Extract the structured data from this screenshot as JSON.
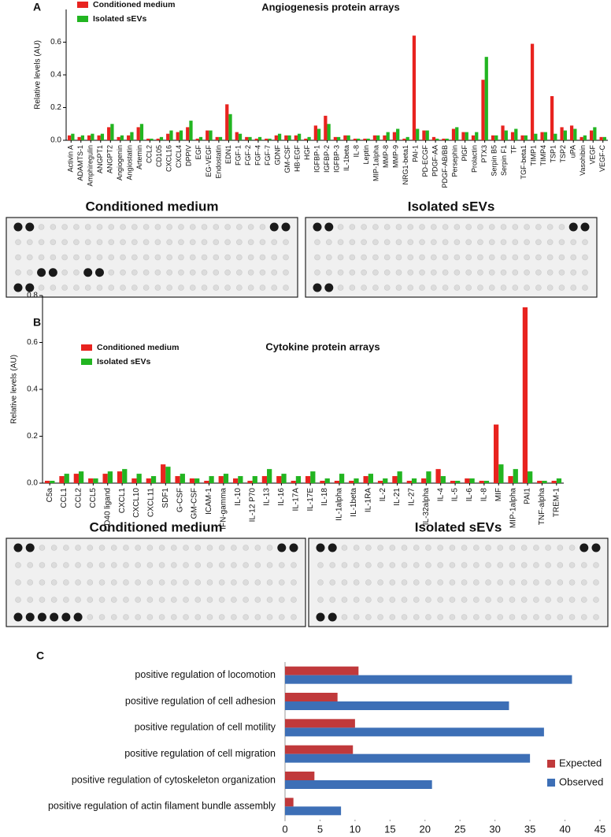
{
  "chart_data": [
    {
      "type": "bar",
      "panel_label": "A",
      "title": "Angiogenesis protein arrays",
      "y_label": "Relative levels (AU)",
      "categories": [
        "Activin A",
        "ADAMTS-1",
        "Amphiregulin",
        "ANGPT1",
        "ANGPT2",
        "Angiogenin",
        "Angiostatin",
        "Artemin",
        "CCL2",
        "CD105",
        "CXCL16",
        "CXCL4",
        "DPPIV",
        "EGF",
        "EG-VEGF",
        "Endostatin",
        "EDN1",
        "FGF-1",
        "FGF-2",
        "FGF-4",
        "FGF-7",
        "GDNF",
        "GM-CSF",
        "HB-EGF",
        "HGF",
        "IGFBP-1",
        "IGFBP-2",
        "IGFBP-3",
        "IL-1beta",
        "IL-8",
        "Leptin",
        "MIP-1alpha",
        "MMP-8",
        "MMP-9",
        "NRG1-beta1",
        "PAI-1",
        "PD-ECGF",
        "PDGF-AA",
        "PDGF-AB/BB",
        "Persephin",
        "PlGF",
        "Prolactin",
        "PTX3",
        "Serpin B5",
        "Serpin F1",
        "TF",
        "TGF-beta1",
        "TIMP1",
        "TIMP4",
        "TSP1",
        "TSP2",
        "uPA",
        "Vasohibin",
        "VEGF",
        "VEGF-C"
      ],
      "series": [
        {
          "name": "Conditioned medium",
          "color": "#e8231f",
          "values": [
            0.03,
            0.02,
            0.03,
            0.03,
            0.08,
            0.02,
            0.03,
            0.08,
            0.01,
            0.01,
            0.04,
            0.05,
            0.08,
            0.01,
            0.06,
            0.02,
            0.22,
            0.05,
            0.02,
            0.01,
            0.01,
            0.03,
            0.03,
            0.03,
            0.01,
            0.09,
            0.15,
            0.02,
            0.03,
            0.01,
            0.01,
            0.03,
            0.03,
            0.05,
            0.01,
            0.64,
            0.06,
            0.02,
            0.01,
            0.07,
            0.05,
            0.03,
            0.37,
            0.03,
            0.09,
            0.05,
            0.03,
            0.59,
            0.05,
            0.27,
            0.08,
            0.09,
            0.02,
            0.06,
            0.02
          ]
        },
        {
          "name": "Isolated sEVs",
          "color": "#22b521",
          "values": [
            0.04,
            0.03,
            0.04,
            0.04,
            0.1,
            0.03,
            0.05,
            0.1,
            0.01,
            0.02,
            0.06,
            0.06,
            0.12,
            0.02,
            0.06,
            0.02,
            0.16,
            0.04,
            0.02,
            0.02,
            0.01,
            0.04,
            0.03,
            0.04,
            0.02,
            0.07,
            0.1,
            0.02,
            0.03,
            0.01,
            0.01,
            0.03,
            0.05,
            0.07,
            0.02,
            0.07,
            0.06,
            0.01,
            0.01,
            0.08,
            0.05,
            0.05,
            0.51,
            0.03,
            0.06,
            0.07,
            0.03,
            0.04,
            0.05,
            0.04,
            0.06,
            0.07,
            0.03,
            0.08,
            0.02
          ]
        }
      ],
      "ylim": [
        0,
        0.8
      ],
      "yticks": [
        {
          "value": 0,
          "label": "0.0"
        },
        0.2,
        0.4,
        0.6
      ],
      "array_titles": [
        "Conditioned medium",
        "Isolated sEVs"
      ]
    },
    {
      "type": "bar",
      "panel_label": "B",
      "title": "Cytokine protein arrays",
      "y_label": "Relative levels (AU)",
      "categories": [
        "C5a",
        "CCL1",
        "CCL2",
        "CCL5",
        "CD40 ligand",
        "CXCL1",
        "CXCL10",
        "CXCL11",
        "SDF1",
        "G-CSF",
        "GM-CSF",
        "ICAM-1",
        "IFN-gamma",
        "IL-10",
        "IL-12 P70",
        "IL-13",
        "IL-16",
        "IL-17A",
        "IL-17E",
        "IL-18",
        "IL-1alpha",
        "IL-1beta",
        "IL-1RA",
        "IL-2",
        "IL-21",
        "IL-27",
        "IL-32alpha",
        "IL-4",
        "IL-5",
        "IL-6",
        "IL-8",
        "MIF",
        "MIP-1alpha",
        "PAI1",
        "TNF-alpha",
        "TREM-1"
      ],
      "series": [
        {
          "name": "Conditioned medium",
          "color": "#e8231f",
          "values": [
            0.01,
            0.03,
            0.04,
            0.02,
            0.04,
            0.05,
            0.02,
            0.02,
            0.08,
            0.03,
            0.02,
            0.01,
            0.03,
            0.02,
            0.01,
            0.03,
            0.03,
            0.01,
            0.03,
            0.01,
            0.01,
            0.01,
            0.03,
            0.01,
            0.03,
            0.01,
            0.02,
            0.06,
            0.01,
            0.02,
            0.01,
            0.25,
            0.03,
            0.75,
            0.01,
            0.01
          ]
        },
        {
          "name": "Isolated sEVs",
          "color": "#22b521",
          "values": [
            0.01,
            0.04,
            0.05,
            0.02,
            0.05,
            0.06,
            0.04,
            0.03,
            0.07,
            0.04,
            0.02,
            0.03,
            0.04,
            0.03,
            0.03,
            0.06,
            0.04,
            0.03,
            0.05,
            0.02,
            0.04,
            0.02,
            0.04,
            0.02,
            0.05,
            0.02,
            0.05,
            0.03,
            0.01,
            0.02,
            0.01,
            0.08,
            0.06,
            0.05,
            0.01,
            0.02
          ]
        }
      ],
      "ylim": [
        0,
        0.8
      ],
      "yticks": [
        {
          "value": 0,
          "label": "0.0"
        },
        0.2,
        0.4,
        0.6,
        0.8
      ],
      "array_titles": [
        "Conditioned medium",
        "Isolated sEVs"
      ]
    },
    {
      "type": "hbar",
      "panel_label": "C",
      "categories": [
        "positive regulation of locomotion",
        "positive regulation of cell adhesion",
        "positive regulation of cell motility",
        "positive regulation of cell migration",
        "positive regulation of cytoskeleton organization",
        "positive regulation of actin filament bundle assembly"
      ],
      "series": [
        {
          "name": "Expected",
          "color": "#c0393b",
          "values": [
            10.5,
            7.5,
            10,
            9.7,
            4.2,
            1.2
          ]
        },
        {
          "name": "Observed",
          "color": "#3d6fb6",
          "values": [
            41,
            32,
            37,
            35,
            21,
            8
          ]
        }
      ],
      "xlim": [
        0,
        45
      ],
      "xticks": [
        0,
        5,
        10,
        15,
        20,
        25,
        30,
        35,
        40,
        45
      ]
    }
  ]
}
